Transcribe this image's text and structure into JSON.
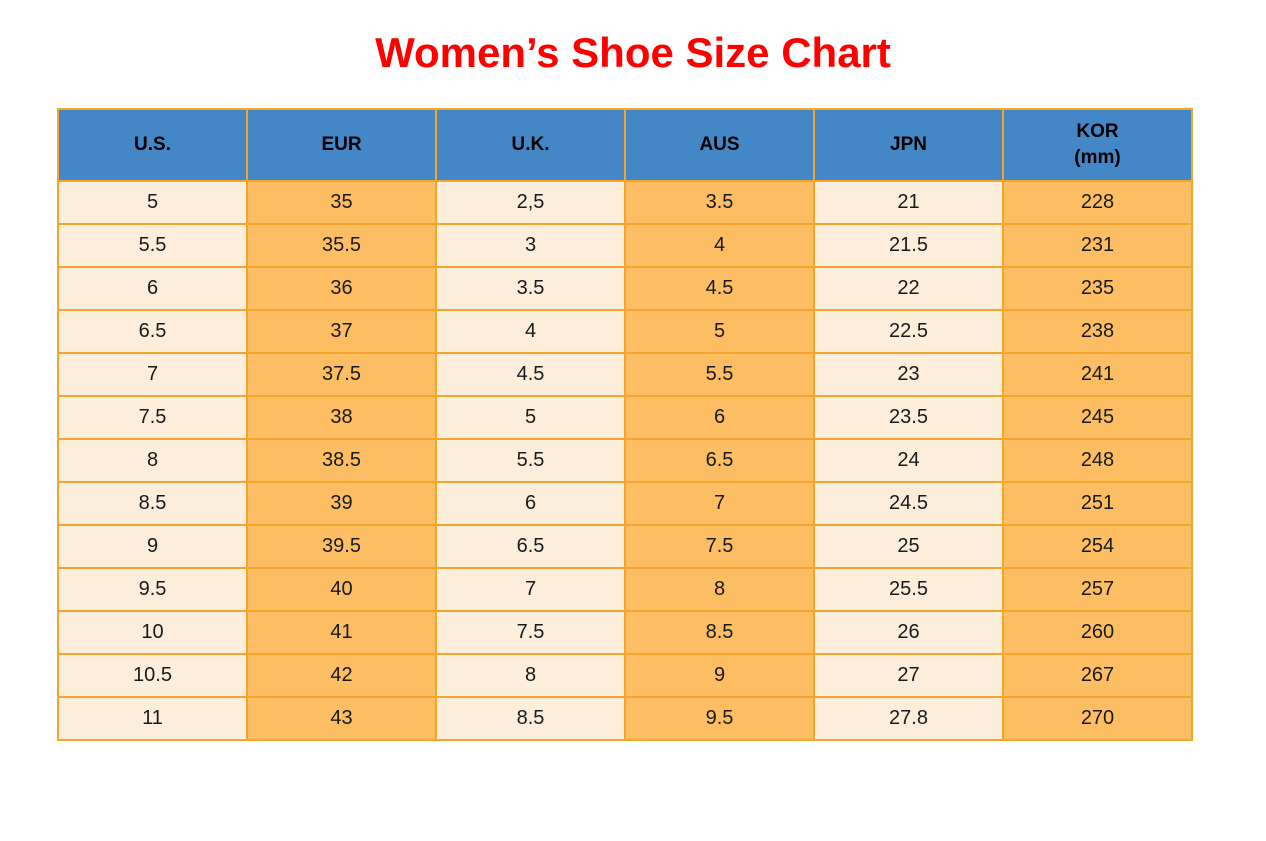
{
  "title": {
    "text": "Women’s Shoe Size Chart"
  },
  "colors": {
    "page_bg": "#FFFFFF",
    "title_color": "#FE0000",
    "header_bg": "#4387C6",
    "header_text": "#000000",
    "cell_orange": "#FDBE63",
    "cell_cream": "#FCEEDB",
    "border": "#F5A52B",
    "cell_text": "#1A1A1A"
  },
  "table": {
    "headers": [
      {
        "id": "us",
        "lines": [
          "U.S."
        ]
      },
      {
        "id": "eur",
        "lines": [
          "EUR"
        ]
      },
      {
        "id": "uk",
        "lines": [
          "U.K."
        ]
      },
      {
        "id": "aus",
        "lines": [
          "AUS"
        ]
      },
      {
        "id": "jpn",
        "lines": [
          "JPN"
        ]
      },
      {
        "id": "kor",
        "lines": [
          "KOR",
          "(mm)"
        ]
      }
    ]
  },
  "chart_data": {
    "type": "table",
    "title": "Women’s Shoe Size Chart",
    "columns": [
      "U.S.",
      "EUR",
      "U.K.",
      "AUS",
      "JPN",
      "KOR (mm)"
    ],
    "rows": [
      [
        "5",
        "35",
        "2,5",
        "3.5",
        "21",
        "228"
      ],
      [
        "5.5",
        "35.5",
        "3",
        "4",
        "21.5",
        "231"
      ],
      [
        "6",
        "36",
        "3.5",
        "4.5",
        "22",
        "235"
      ],
      [
        "6.5",
        "37",
        "4",
        "5",
        "22.5",
        "238"
      ],
      [
        "7",
        "37.5",
        "4.5",
        "5.5",
        "23",
        "241"
      ],
      [
        "7.5",
        "38",
        "5",
        "6",
        "23.5",
        "245"
      ],
      [
        "8",
        "38.5",
        "5.5",
        "6.5",
        "24",
        "248"
      ],
      [
        "8.5",
        "39",
        "6",
        "7",
        "24.5",
        "251"
      ],
      [
        "9",
        "39.5",
        "6.5",
        "7.5",
        "25",
        "254"
      ],
      [
        "9.5",
        "40",
        "7",
        "8",
        "25.5",
        "257"
      ],
      [
        "10",
        "41",
        "7.5",
        "8.5",
        "26",
        "260"
      ],
      [
        "10.5",
        "42",
        "8",
        "9",
        "27",
        "267"
      ],
      [
        "11",
        "43",
        "8.5",
        "9.5",
        "27.8",
        "270"
      ]
    ]
  }
}
